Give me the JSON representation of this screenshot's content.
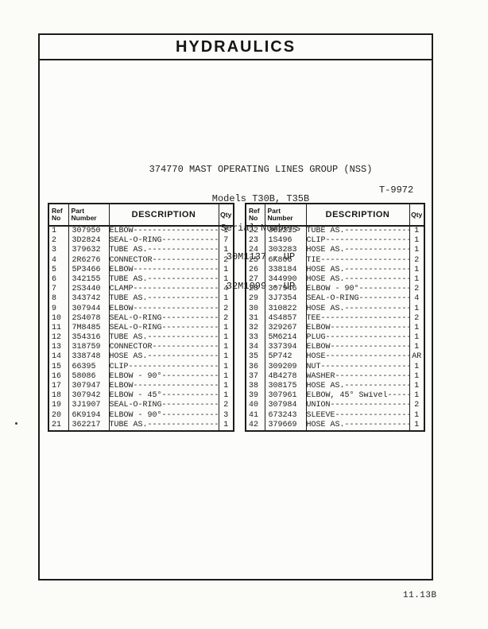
{
  "header": {
    "title": "HYDRAULICS"
  },
  "title_block": {
    "group_line": "374770 MAST OPERATING LINES GROUP (NSS)",
    "models_line": "Models T30B, T35B",
    "serial_label": "Serial Numbers",
    "serial_range_1": "30M1137 - UP",
    "serial_range_2": "32M1099 - UP",
    "drawing_ref": "T-9972"
  },
  "table_headers": {
    "ref_no": "Ref No",
    "part_number": "Part Number",
    "description": "DESCRIPTION",
    "qty": "Qty"
  },
  "tables": [
    {
      "rows": [
        {
          "ref": "1",
          "part": "307950",
          "desc": "ELBOW",
          "qty": "1"
        },
        {
          "ref": "2",
          "part": "3D2824",
          "desc": "SEAL-O-RING",
          "qty": "7"
        },
        {
          "ref": "3",
          "part": "379632",
          "desc": "TUBE AS.",
          "qty": "1"
        },
        {
          "ref": "4",
          "part": "2R6276",
          "desc": "CONNECTOR",
          "qty": "2"
        },
        {
          "ref": "5",
          "part": "5P3466",
          "desc": "ELBOW",
          "qty": "1"
        },
        {
          "ref": "6",
          "part": "342155",
          "desc": "TUBE AS.",
          "qty": "1"
        },
        {
          "ref": "7",
          "part": "2S3440",
          "desc": "CLAMP",
          "qty": "4"
        },
        {
          "ref": "8",
          "part": "343742",
          "desc": "TUBE AS.",
          "qty": "1"
        },
        {
          "ref": "9",
          "part": "307944",
          "desc": "ELBOW",
          "qty": "2"
        },
        {
          "ref": "10",
          "part": "2S4078",
          "desc": "SEAL-O-RING",
          "qty": "2"
        },
        {
          "ref": "11",
          "part": "7M8485",
          "desc": "SEAL-O-RING",
          "qty": "1"
        },
        {
          "ref": "12",
          "part": "354316",
          "desc": "TUBE AS.",
          "qty": "1"
        },
        {
          "ref": "13",
          "part": "318759",
          "desc": "CONNECTOR",
          "qty": "1"
        },
        {
          "ref": "14",
          "part": "338748",
          "desc": "HOSE AS.",
          "qty": "1"
        },
        {
          "ref": "15",
          "part": "66395",
          "desc": "CLIP",
          "qty": "1"
        },
        {
          "ref": "16",
          "part": "58086",
          "desc": "ELBOW - 90°",
          "qty": "1"
        },
        {
          "ref": "17",
          "part": "307947",
          "desc": "ELBOW",
          "qty": "1"
        },
        {
          "ref": "18",
          "part": "307942",
          "desc": "ELBOW - 45°",
          "qty": "1"
        },
        {
          "ref": "19",
          "part": "3J1907",
          "desc": "SEAL-O-RING",
          "qty": "2"
        },
        {
          "ref": "20",
          "part": "6K9194",
          "desc": "ELBOW - 90°",
          "qty": "3"
        },
        {
          "ref": "21",
          "part": "362217",
          "desc": "TUBE AS.",
          "qty": "1"
        }
      ]
    },
    {
      "rows": [
        {
          "ref": "22",
          "part": "362215",
          "desc": "TUBE AS.",
          "qty": "1"
        },
        {
          "ref": "23",
          "part": "1S496",
          "desc": "CLIP",
          "qty": "1"
        },
        {
          "ref": "24",
          "part": "303283",
          "desc": "HOSE AS.",
          "qty": "1"
        },
        {
          "ref": "25",
          "part": "6K806",
          "desc": "TIE",
          "qty": "2"
        },
        {
          "ref": "26",
          "part": "338184",
          "desc": "HOSE AS.",
          "qty": "1"
        },
        {
          "ref": "27",
          "part": "344990",
          "desc": "HOSE AS.",
          "qty": "1"
        },
        {
          "ref": "28",
          "part": "307946",
          "desc": "ELBOW - 90°",
          "qty": "2"
        },
        {
          "ref": "29",
          "part": "3J7354",
          "desc": "SEAL-O-RING",
          "qty": "4"
        },
        {
          "ref": "30",
          "part": "310822",
          "desc": "HOSE AS.",
          "qty": "1"
        },
        {
          "ref": "31",
          "part": "4S4857",
          "desc": "TEE",
          "qty": "2"
        },
        {
          "ref": "32",
          "part": "329267",
          "desc": "ELBOW",
          "qty": "1"
        },
        {
          "ref": "33",
          "part": "5M6214",
          "desc": "PLUG",
          "qty": "1"
        },
        {
          "ref": "34",
          "part": "337394",
          "desc": "ELBOW",
          "qty": "1"
        },
        {
          "ref": "35",
          "part": "5P742",
          "desc": "HOSE",
          "qty": "AR"
        },
        {
          "ref": "36",
          "part": "309209",
          "desc": "NUT",
          "qty": "1"
        },
        {
          "ref": "37",
          "part": "4B4278",
          "desc": "WASHER",
          "qty": "1"
        },
        {
          "ref": "38",
          "part": "308175",
          "desc": "HOSE AS.",
          "qty": "1"
        },
        {
          "ref": "39",
          "part": "307961",
          "desc": "ELBOW, 45° Swivel",
          "qty": "1"
        },
        {
          "ref": "40",
          "part": "307984",
          "desc": "UNION",
          "qty": "2"
        },
        {
          "ref": "41",
          "part": "673243",
          "desc": "SLEEVE",
          "qty": "1"
        },
        {
          "ref": "42",
          "part": "379669",
          "desc": "HOSE AS.",
          "qty": "1"
        }
      ]
    }
  ],
  "footer": {
    "page_number": "11.13B"
  },
  "colors": {
    "ink": "#1c1c1c",
    "paper": "#fcfcfa"
  }
}
